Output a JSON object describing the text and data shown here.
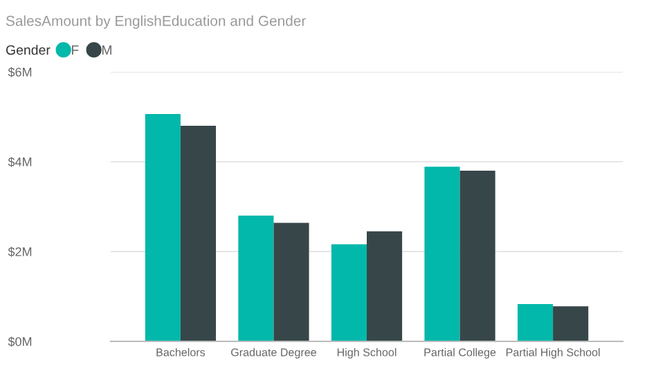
{
  "chart_data": {
    "type": "bar",
    "title": "SalesAmount by EnglishEducation and Gender",
    "legend_title": "Gender",
    "categories": [
      "Bachelors",
      "Graduate Degree",
      "High School",
      "Partial College",
      "Partial High School"
    ],
    "series": [
      {
        "name": "F",
        "color": "#01b8aa",
        "values": [
          5.06,
          2.8,
          2.16,
          3.89,
          0.83
        ]
      },
      {
        "name": "M",
        "color": "#374649",
        "values": [
          4.8,
          2.64,
          2.45,
          3.8,
          0.78
        ]
      }
    ],
    "ylim": [
      0,
      6
    ],
    "yticks": [
      {
        "value": 0,
        "label": "$0M"
      },
      {
        "value": 2,
        "label": "$2M"
      },
      {
        "value": 4,
        "label": "$4M"
      },
      {
        "value": 6,
        "label": "$6M"
      }
    ],
    "grid": "y",
    "legend": "top left"
  }
}
